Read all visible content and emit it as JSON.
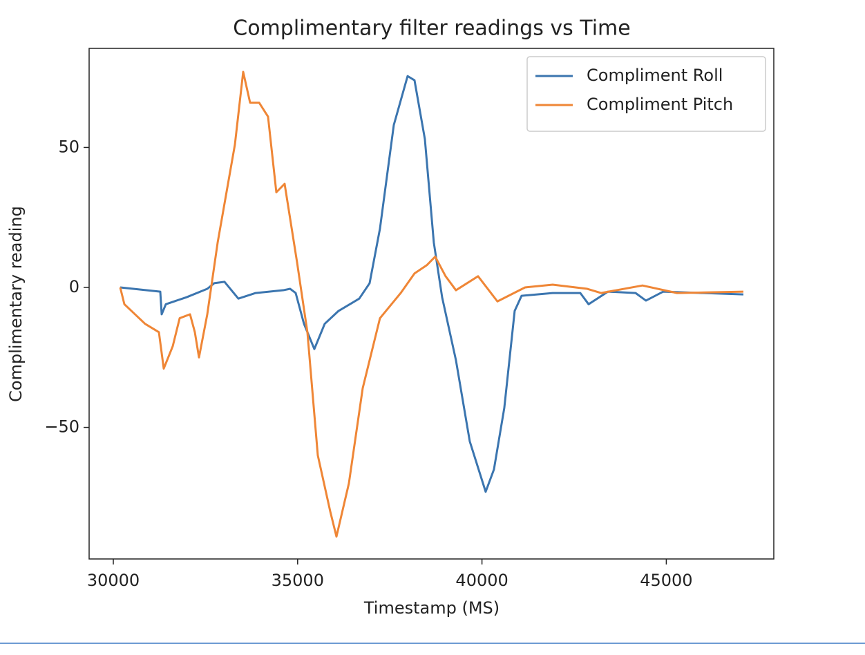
{
  "chart_data": {
    "type": "line",
    "title": "Complimentary filter readings vs Time",
    "xlabel": "Timestamp (MS)",
    "ylabel": "Complimentary reading",
    "xlim": [
      29344,
      47916
    ],
    "ylim": [
      -97,
      85.4
    ],
    "xticks": [
      30000,
      35000,
      40000,
      45000
    ],
    "yticks": [
      {
        "value": -50,
        "label": "−50"
      },
      0,
      50
    ],
    "legend": "upper right",
    "series": [
      {
        "name": "Compliment Roll",
        "color": "#3b75af",
        "x": [
          30187,
          31274,
          31312,
          31425,
          31987,
          32549,
          32736,
          33017,
          33392,
          33860,
          34610,
          34797,
          34947,
          35172,
          35453,
          35734,
          36109,
          36671,
          36952,
          37233,
          37608,
          37983,
          38170,
          38451,
          38694,
          38919,
          39294,
          39669,
          40100,
          40325,
          40606,
          40887,
          41074,
          41918,
          42668,
          42892,
          43417,
          44167,
          44448,
          44917,
          47091
        ],
        "values": [
          0,
          -1.5,
          -9.6,
          -6,
          -3.5,
          -0.5,
          1.5,
          2,
          -4,
          -2,
          -1,
          -0.5,
          -2,
          -13,
          -22,
          -13,
          -8.4,
          -4,
          1.5,
          21,
          58,
          75.5,
          74,
          53,
          16,
          -3.5,
          -26,
          -55,
          -73,
          -65,
          -43,
          -8.4,
          -3,
          -2,
          -2,
          -6,
          -1.5,
          -2,
          -4.7,
          -1.5,
          -2.5
        ]
      },
      {
        "name": "Compliment Pitch",
        "color": "#ef8636",
        "x": [
          30187,
          30300,
          30862,
          31237,
          31368,
          31612,
          31800,
          32081,
          32212,
          32324,
          32549,
          32830,
          33298,
          33523,
          33710,
          33955,
          34197,
          34422,
          34647,
          34984,
          35265,
          35547,
          35884,
          36053,
          36390,
          36765,
          37233,
          37796,
          38170,
          38508,
          38731,
          39013,
          39294,
          39894,
          40419,
          41168,
          41918,
          42855,
          43230,
          44354,
          45291,
          47091
        ],
        "values": [
          0,
          -6,
          -13,
          -16,
          -29,
          -21,
          -11,
          -9.6,
          -16,
          -25,
          -9.6,
          16,
          51,
          77,
          66,
          66,
          61,
          34,
          37,
          9,
          -16,
          -60,
          -80,
          -89,
          -70,
          -36,
          -11,
          -2,
          5,
          8,
          11,
          4,
          -1,
          4,
          -5,
          0,
          1,
          -0.5,
          -2,
          0.7,
          -2,
          -1.5
        ]
      }
    ]
  }
}
